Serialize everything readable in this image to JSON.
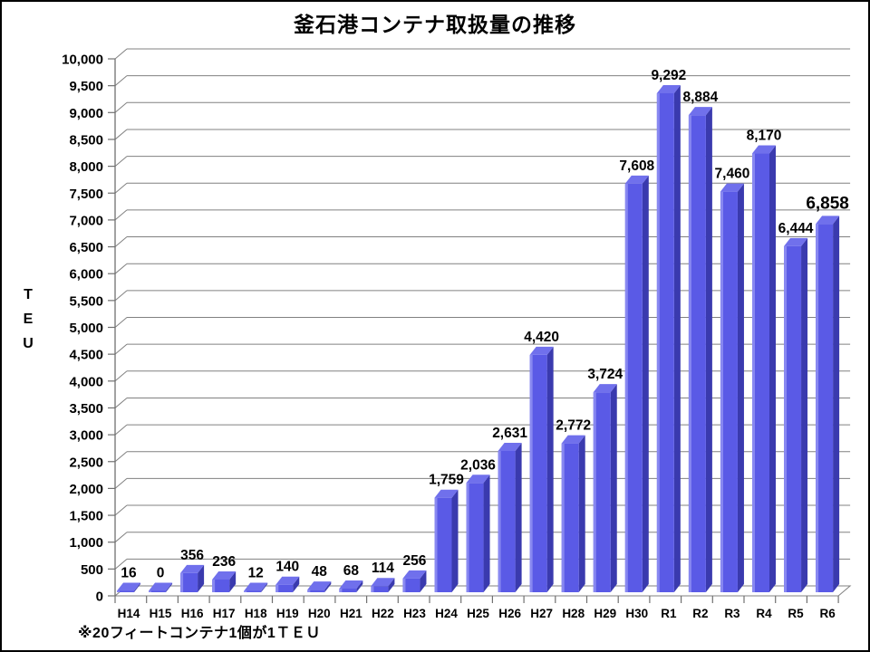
{
  "chart_data": {
    "type": "bar",
    "title": "釜石港コンテナ取扱量の推移",
    "ylabel": "TEU",
    "footnote": "※20フィートコンテナ1個が1ＴＥＵ",
    "categories": [
      "H14",
      "H15",
      "H16",
      "H17",
      "H18",
      "H19",
      "H20",
      "H21",
      "H22",
      "H23",
      "H24",
      "H25",
      "H26",
      "H27",
      "H28",
      "H29",
      "H30",
      "R1",
      "R2",
      "R3",
      "R4",
      "R5",
      "R6"
    ],
    "values": [
      16,
      0,
      356,
      236,
      12,
      140,
      48,
      68,
      114,
      256,
      1759,
      2036,
      2631,
      4420,
      2772,
      3724,
      7608,
      9292,
      8884,
      7460,
      8170,
      6444,
      6858
    ],
    "value_labels": [
      "16",
      "0",
      "356",
      "236",
      "12",
      "140",
      "48",
      "68",
      "114",
      "256",
      "1,759",
      "2,036",
      "2,631",
      "4,420",
      "2,772",
      "3,724",
      "7,608",
      "9,292",
      "8,884",
      "7,460",
      "8,170",
      "6,444",
      "6,858"
    ],
    "emphasized_category": "R6",
    "ylim": [
      0,
      10000
    ],
    "ytick_step": 500,
    "yticks": [
      0,
      500,
      1000,
      1500,
      2000,
      2500,
      3000,
      3500,
      4000,
      4500,
      5000,
      5500,
      6000,
      6500,
      7000,
      7500,
      8000,
      8500,
      9000,
      9500,
      10000
    ],
    "grid": true,
    "legend": "none",
    "style_3d": true,
    "colors": {
      "bar_front": "#5a5ae6",
      "bar_top": "#7070ec",
      "bar_side": "#3a3aae",
      "bar_highlight": "#9090f2",
      "gridline": "#808080",
      "axis": "#707070",
      "text": "#000000",
      "background": "#ffffff",
      "border": "#000000"
    }
  }
}
